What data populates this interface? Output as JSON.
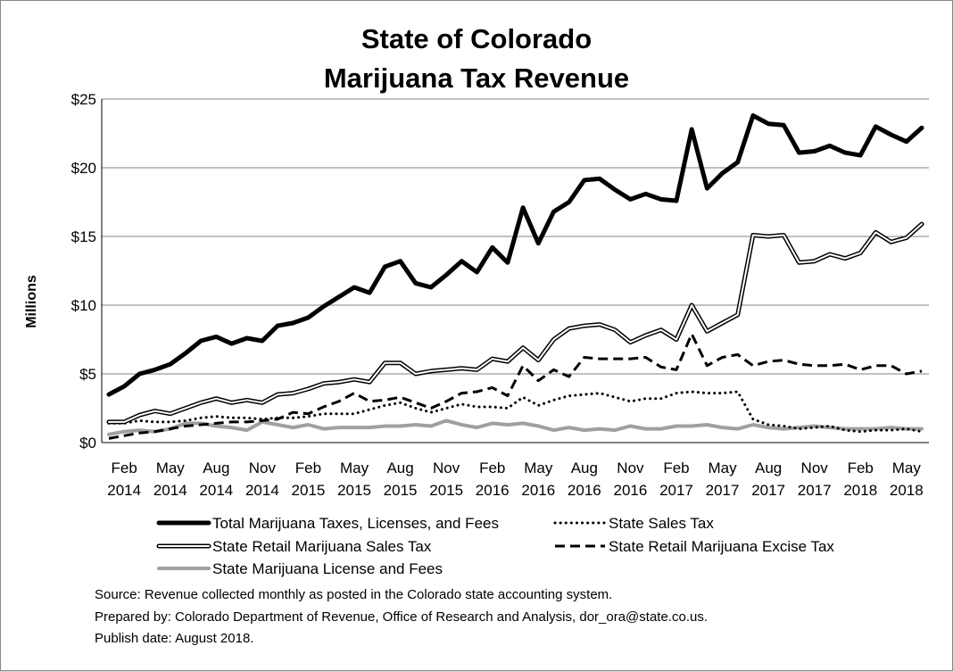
{
  "chart_data": {
    "type": "line",
    "title": [
      "State of Colorado",
      "Marijuana Tax Revenue"
    ],
    "ylabel": "Millions",
    "ylim": [
      0,
      25
    ],
    "ytick_values": [
      0,
      5,
      10,
      15,
      20,
      25
    ],
    "ytick_labels": [
      "$0",
      "$5",
      "$10",
      "$15",
      "$20",
      "$25"
    ],
    "xtick_labels": [
      [
        "Feb",
        "2014"
      ],
      [
        "May",
        "2014"
      ],
      [
        "Aug",
        "2014"
      ],
      [
        "Nov",
        "2014"
      ],
      [
        "Feb",
        "2015"
      ],
      [
        "May",
        "2015"
      ],
      [
        "Aug",
        "2015"
      ],
      [
        "Nov",
        "2015"
      ],
      [
        "Feb",
        "2016"
      ],
      [
        "May",
        "2016"
      ],
      [
        "Aug",
        "2016"
      ],
      [
        "Nov",
        "2016"
      ],
      [
        "Feb",
        "2017"
      ],
      [
        "May",
        "2017"
      ],
      [
        "Aug",
        "2017"
      ],
      [
        "Nov",
        "2017"
      ],
      [
        "Feb",
        "2018"
      ],
      [
        "May",
        "2018"
      ]
    ],
    "x_start": "Jan 2014",
    "x_end": "Jul 2018",
    "series": [
      {
        "name": "Total Marijuana Taxes, Licenses, and Fees",
        "style": "thick",
        "values": [
          3.5,
          4.1,
          5.0,
          5.3,
          5.7,
          6.5,
          7.4,
          7.7,
          7.2,
          7.6,
          7.4,
          8.5,
          8.7,
          9.1,
          9.9,
          10.6,
          11.3,
          10.9,
          12.8,
          13.2,
          11.6,
          11.3,
          12.2,
          13.2,
          12.4,
          14.2,
          13.1,
          17.1,
          14.5,
          16.8,
          17.5,
          19.1,
          19.2,
          18.4,
          17.7,
          18.1,
          17.7,
          17.6,
          22.8,
          18.5,
          19.6,
          20.4,
          23.8,
          23.2,
          23.1,
          21.1,
          21.2,
          21.6,
          21.1,
          20.9,
          23.0,
          22.4,
          21.9,
          22.9
        ]
      },
      {
        "name": "State Sales Tax",
        "style": "dotted",
        "values": [
          1.4,
          1.4,
          1.6,
          1.5,
          1.5,
          1.6,
          1.8,
          1.9,
          1.8,
          1.8,
          1.7,
          1.8,
          1.8,
          1.9,
          2.1,
          2.1,
          2.1,
          2.4,
          2.7,
          2.9,
          2.5,
          2.2,
          2.5,
          2.8,
          2.6,
          2.6,
          2.5,
          3.3,
          2.7,
          3.1,
          3.4,
          3.5,
          3.6,
          3.3,
          3.0,
          3.2,
          3.2,
          3.6,
          3.7,
          3.6,
          3.6,
          3.7,
          1.7,
          1.3,
          1.2,
          1.0,
          1.1,
          1.2,
          0.9,
          0.8,
          0.9,
          0.9,
          1.0,
          0.8
        ]
      },
      {
        "name": "State Retail Marijuana Sales Tax",
        "style": "double",
        "values": [
          1.5,
          1.5,
          2.0,
          2.3,
          2.1,
          2.5,
          2.9,
          3.2,
          2.9,
          3.1,
          2.9,
          3.5,
          3.6,
          3.9,
          4.3,
          4.4,
          4.6,
          4.4,
          5.8,
          5.8,
          5.0,
          5.2,
          5.3,
          5.4,
          5.3,
          6.1,
          5.9,
          6.9,
          6.0,
          7.5,
          8.3,
          8.5,
          8.6,
          8.2,
          7.3,
          7.8,
          8.2,
          7.5,
          10.0,
          8.1,
          8.7,
          9.3,
          15.1,
          15.0,
          15.1,
          13.1,
          13.2,
          13.7,
          13.4,
          13.8,
          15.3,
          14.6,
          14.9,
          15.9
        ]
      },
      {
        "name": "State Retail Marijuana Excise Tax",
        "style": "dashed",
        "values": [
          0.3,
          0.5,
          0.7,
          0.8,
          1.0,
          1.2,
          1.3,
          1.4,
          1.5,
          1.5,
          1.6,
          1.7,
          2.2,
          2.1,
          2.6,
          3.0,
          3.6,
          3.0,
          3.1,
          3.3,
          2.9,
          2.5,
          3.0,
          3.6,
          3.7,
          4.0,
          3.4,
          5.6,
          4.5,
          5.3,
          4.8,
          6.2,
          6.1,
          6.1,
          6.1,
          6.2,
          5.5,
          5.3,
          7.9,
          5.6,
          6.2,
          6.4,
          5.6,
          5.9,
          6.0,
          5.7,
          5.6,
          5.6,
          5.7,
          5.3,
          5.6,
          5.6,
          5.0,
          5.2
        ]
      },
      {
        "name": "State Marijuana License and Fees",
        "style": "gray",
        "values": [
          0.6,
          0.8,
          0.9,
          0.8,
          1.0,
          1.4,
          1.4,
          1.2,
          1.1,
          0.9,
          1.5,
          1.3,
          1.1,
          1.3,
          1.0,
          1.1,
          1.1,
          1.1,
          1.2,
          1.2,
          1.3,
          1.2,
          1.6,
          1.3,
          1.1,
          1.4,
          1.3,
          1.4,
          1.2,
          0.9,
          1.1,
          0.9,
          1.0,
          0.9,
          1.2,
          1.0,
          1.0,
          1.2,
          1.2,
          1.3,
          1.1,
          1.0,
          1.3,
          1.1,
          1.0,
          1.1,
          1.2,
          1.1,
          1.0,
          1.0,
          1.0,
          1.1,
          1.0,
          1.0
        ]
      }
    ]
  },
  "notes": {
    "source": "Source: Revenue collected monthly as posted in the Colorado state accounting system.",
    "prepared": "Prepared by: Colorado Department of Revenue, Office of Research and Analysis, dor_ora@state.co.us.",
    "publish": "Publish date: August 2018."
  }
}
